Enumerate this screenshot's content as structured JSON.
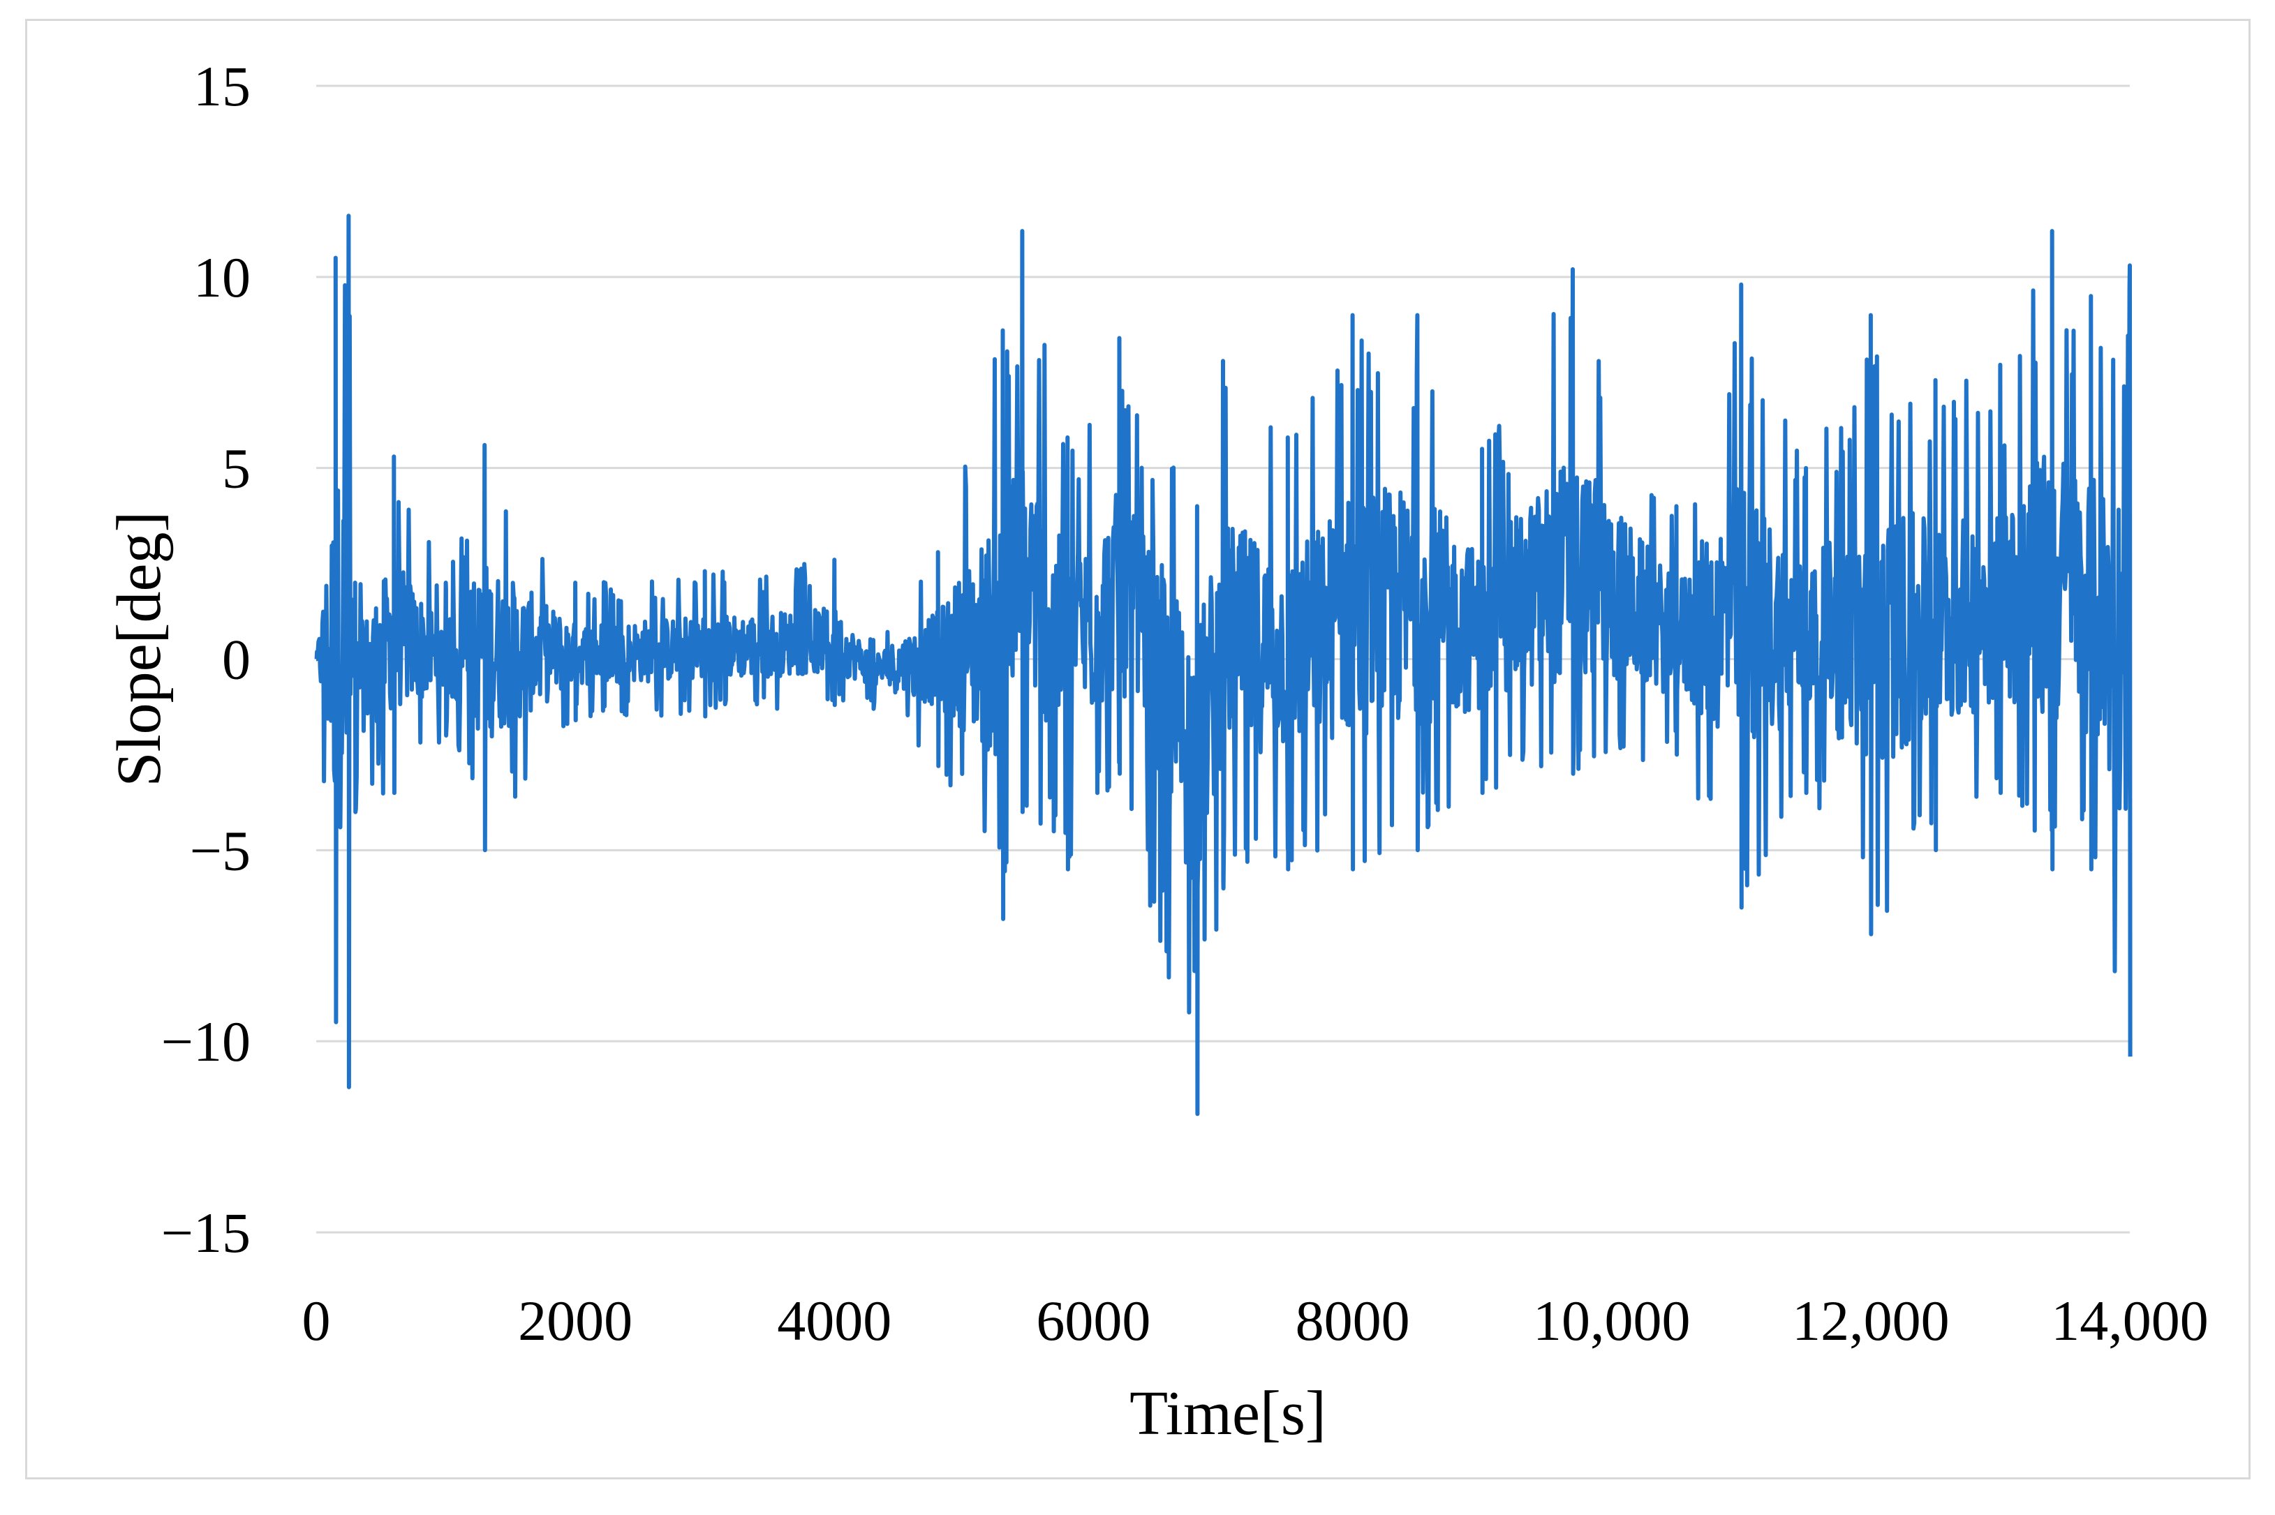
{
  "chart_data": {
    "type": "line",
    "title": "",
    "xlabel": "Time[s]",
    "ylabel": "Slope[deg]",
    "xlim": [
      0,
      14000
    ],
    "ylim": [
      -15,
      15
    ],
    "x_ticks": [
      0,
      2000,
      4000,
      6000,
      8000,
      10000,
      12000,
      14000
    ],
    "x_tick_labels": [
      "0",
      "2000",
      "4000",
      "6000",
      "8000",
      "10,000",
      "12,000",
      "14,000"
    ],
    "y_ticks": [
      15,
      10,
      5,
      0,
      -5,
      -10,
      -15
    ],
    "y_tick_labels": [
      "15",
      "10",
      "5",
      "0",
      "−5",
      "−10",
      "−15"
    ],
    "grid": "horizontal",
    "legend": "none",
    "series_color": "#1F73C9",
    "grid_color": "#d9d9d9",
    "series": [
      {
        "x": [
          0,
          150,
          250,
          300,
          600,
          1000,
          1300,
          2000,
          3000,
          4000,
          4300,
          4800,
          5300,
          5450,
          5800,
          6200,
          6800,
          7000,
          7500,
          8000,
          8500,
          9000,
          9700,
          10500,
          11000,
          11500,
          12000,
          12500,
          13000,
          13400,
          13700,
          14000
        ],
        "y": [
          0.0,
          10.5,
          11.6,
          2.0,
          5.3,
          2.0,
          5.6,
          2.0,
          2.3,
          2.6,
          0.5,
          2.8,
          8.6,
          11.2,
          5.8,
          8.4,
          4.0,
          7.8,
          5.8,
          9.0,
          9.0,
          5.5,
          10.2,
          4.0,
          9.8,
          5.0,
          9.0,
          7.3,
          7.7,
          11.2,
          9.5,
          10.3
        ],
        "y_min": [
          0.0,
          -9.5,
          -11.2,
          -4.0,
          -3.5,
          -2.0,
          -5.0,
          -1.6,
          -1.5,
          -1.2,
          -1.3,
          -2.8,
          -6.8,
          -4.0,
          -5.5,
          -3.0,
          -11.9,
          -6.0,
          -5.5,
          -5.5,
          -5.0,
          -3.5,
          -3.0,
          -2.5,
          -6.5,
          -3.5,
          -7.2,
          -5.0,
          -3.5,
          -5.5,
          -5.5,
          -10.4
        ]
      }
    ]
  }
}
